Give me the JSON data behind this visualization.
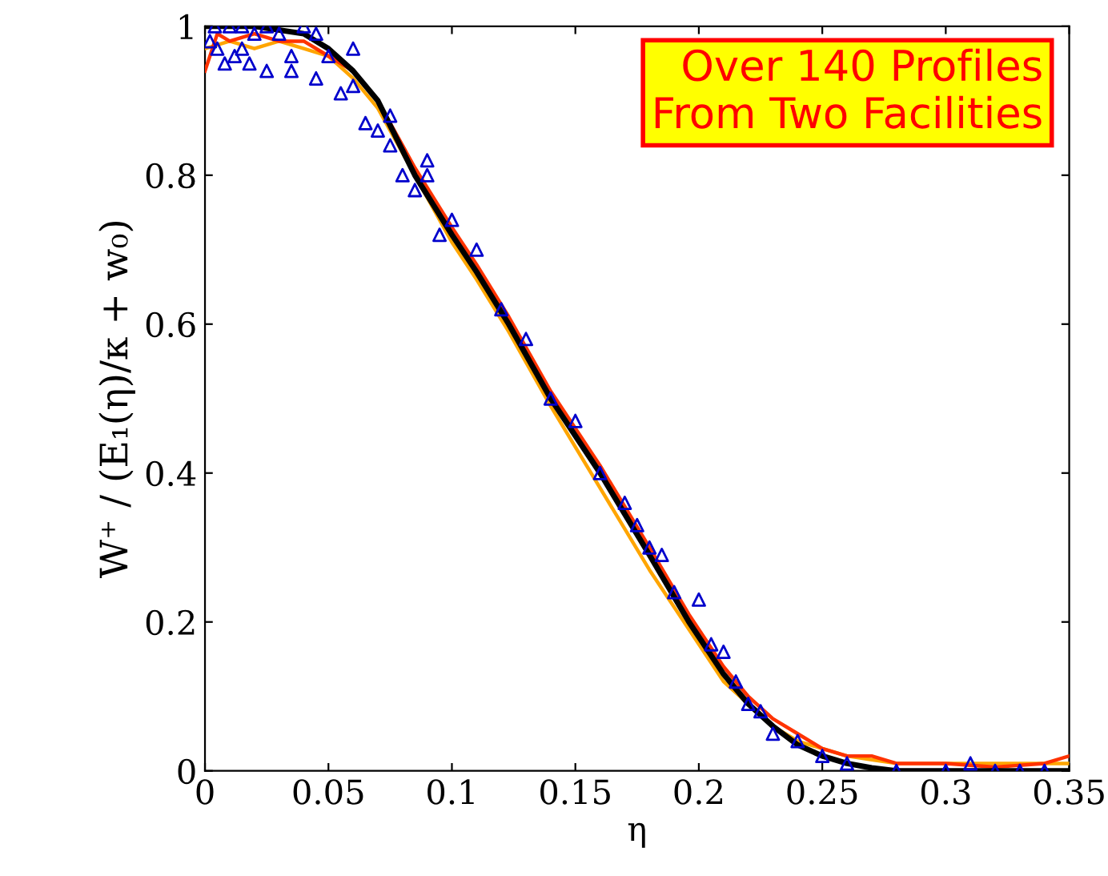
{
  "chart_data": {
    "type": "line",
    "xlabel": "η",
    "ylabel": "W⁺ / (E₁(η)/κ + w₀)",
    "xlim": [
      0,
      0.35
    ],
    "ylim": [
      0,
      1
    ],
    "xticks": [
      0,
      0.05,
      0.1,
      0.15,
      0.2,
      0.25,
      0.3,
      0.35
    ],
    "yticks": [
      0,
      0.2,
      0.4,
      0.6,
      0.8,
      1
    ],
    "grid": false,
    "legend": false,
    "annotations": [
      "Over 140 Profiles\nFrom Two Facilities"
    ],
    "series": [
      {
        "type": "scatter",
        "marker": "triangle",
        "color": "#0000cc",
        "x": [
          0.002,
          0.005,
          0.008,
          0.01,
          0.012,
          0.015,
          0.018,
          0.02,
          0.025,
          0.03,
          0.035,
          0.04,
          0.045,
          0.05,
          0.055,
          0.06,
          0.065,
          0.07,
          0.075,
          0.08,
          0.085,
          0.09,
          0.095,
          0.1,
          0.11,
          0.12,
          0.13,
          0.14,
          0.15,
          0.16,
          0.17,
          0.175,
          0.18,
          0.185,
          0.19,
          0.2,
          0.205,
          0.21,
          0.215,
          0.22,
          0.225,
          0.23,
          0.24,
          0.25,
          0.26,
          0.28,
          0.3,
          0.31,
          0.32,
          0.33,
          0.34,
          0.004,
          0.015,
          0.025,
          0.035,
          0.045,
          0.06,
          0.075,
          0.09
        ],
        "values": [
          0.98,
          0.97,
          0.95,
          1.0,
          0.96,
          1.0,
          0.95,
          0.99,
          0.94,
          0.99,
          0.94,
          1.0,
          0.93,
          0.96,
          0.91,
          0.92,
          0.87,
          0.86,
          0.84,
          0.8,
          0.78,
          0.8,
          0.72,
          0.74,
          0.7,
          0.62,
          0.58,
          0.5,
          0.47,
          0.4,
          0.36,
          0.33,
          0.3,
          0.29,
          0.24,
          0.23,
          0.17,
          0.16,
          0.12,
          0.09,
          0.08,
          0.05,
          0.04,
          0.02,
          0.01,
          0.0,
          0.0,
          0.01,
          0.0,
          0.0,
          0.0,
          1.0,
          0.97,
          1.0,
          0.96,
          0.99,
          0.97,
          0.88,
          0.82
        ]
      },
      {
        "color": "#ffa500",
        "x": [
          0,
          0.01,
          0.02,
          0.03,
          0.04,
          0.05,
          0.06,
          0.07,
          0.085,
          0.1,
          0.11,
          0.123,
          0.14,
          0.16,
          0.18,
          0.196,
          0.21,
          0.22,
          0.23,
          0.24,
          0.25,
          0.26,
          0.27,
          0.28,
          0.3,
          0.32,
          0.34,
          0.35
        ],
        "values": [
          0.97,
          0.98,
          0.97,
          0.98,
          0.97,
          0.96,
          0.93,
          0.89,
          0.8,
          0.71,
          0.66,
          0.59,
          0.49,
          0.38,
          0.27,
          0.19,
          0.12,
          0.09,
          0.06,
          0.04,
          0.03,
          0.02,
          0.015,
          0.01,
          0.01,
          0.01,
          0.01,
          0.01
        ]
      },
      {
        "color": "#ff3300",
        "x": [
          0,
          0.005,
          0.01,
          0.02,
          0.03,
          0.04,
          0.05,
          0.06,
          0.07,
          0.085,
          0.1,
          0.11,
          0.123,
          0.14,
          0.16,
          0.18,
          0.196,
          0.21,
          0.22,
          0.23,
          0.24,
          0.25,
          0.26,
          0.27,
          0.28,
          0.3,
          0.32,
          0.34,
          0.35
        ],
        "values": [
          0.94,
          0.99,
          0.98,
          0.99,
          0.98,
          0.98,
          0.96,
          0.94,
          0.9,
          0.81,
          0.73,
          0.68,
          0.61,
          0.51,
          0.41,
          0.3,
          0.21,
          0.14,
          0.1,
          0.07,
          0.05,
          0.03,
          0.02,
          0.02,
          0.01,
          0.01,
          0.005,
          0.01,
          0.02
        ]
      },
      {
        "color": "#000000",
        "x": [
          0,
          0.02,
          0.04,
          0.05,
          0.06,
          0.07,
          0.085,
          0.1,
          0.11,
          0.123,
          0.14,
          0.16,
          0.18,
          0.196,
          0.21,
          0.22,
          0.23,
          0.24,
          0.25,
          0.26,
          0.27,
          0.28,
          0.35
        ],
        "values": [
          1,
          1,
          0.99,
          0.97,
          0.94,
          0.9,
          0.8,
          0.72,
          0.67,
          0.6,
          0.5,
          0.4,
          0.29,
          0.2,
          0.13,
          0.09,
          0.06,
          0.035,
          0.02,
          0.01,
          0.004,
          0,
          0
        ]
      }
    ]
  }
}
